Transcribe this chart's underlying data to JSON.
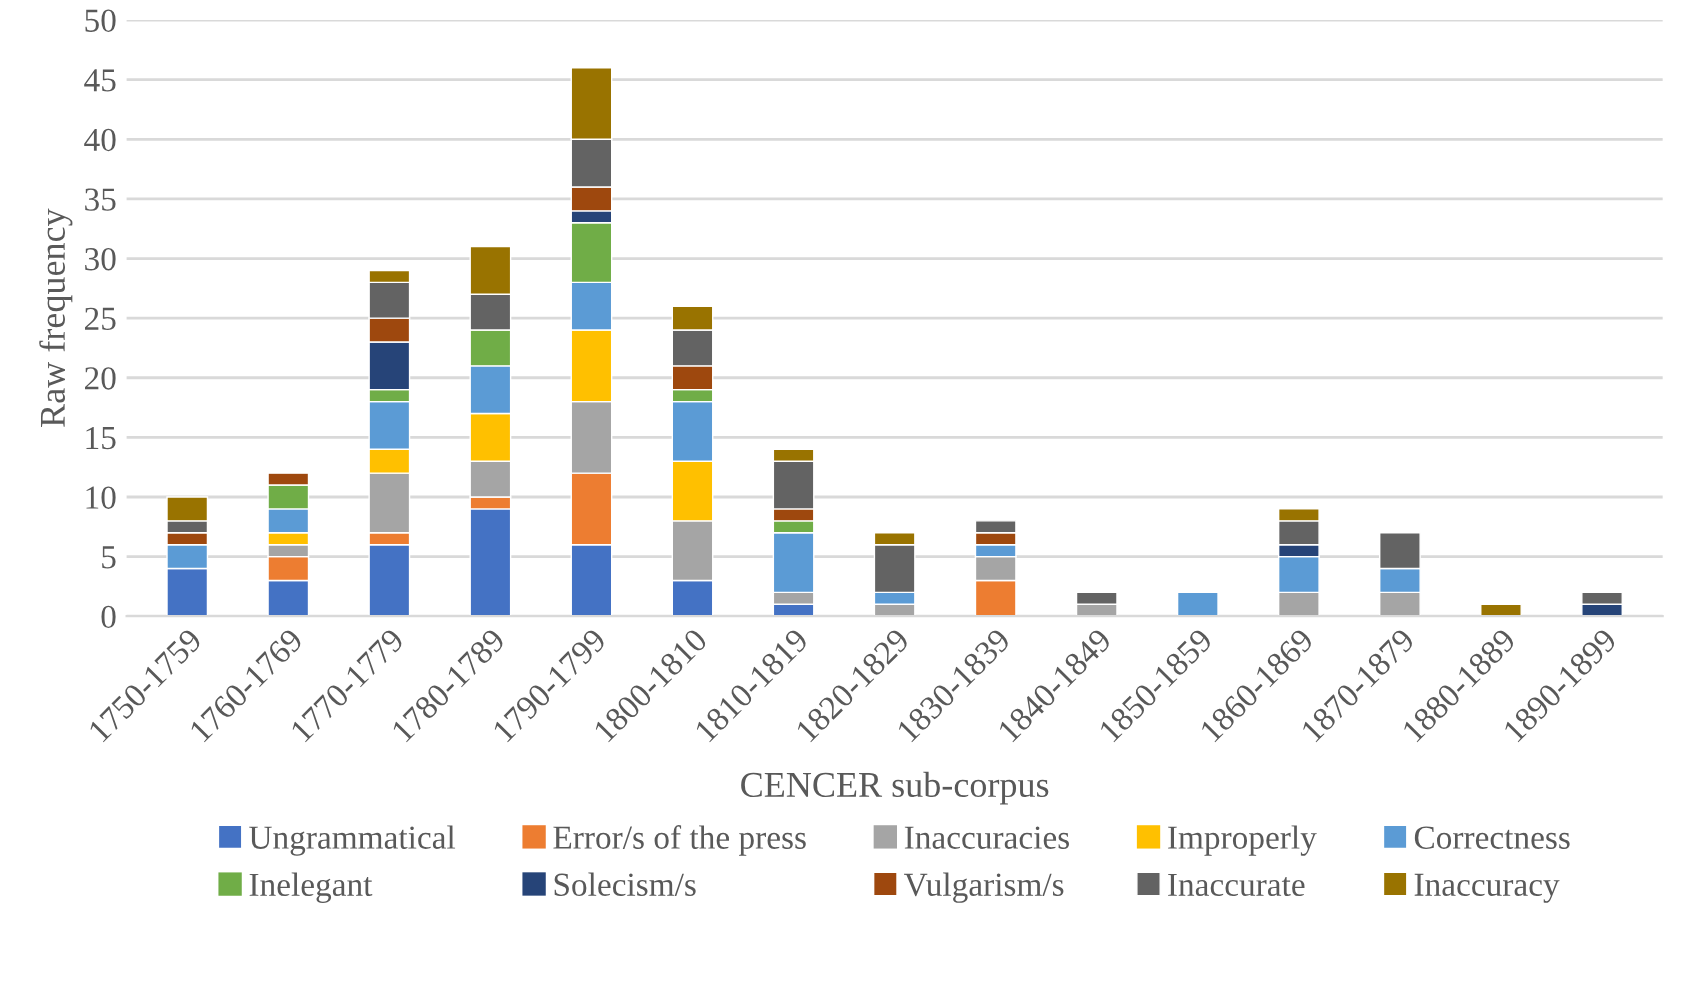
{
  "chart_data": {
    "type": "bar",
    "stacked": true,
    "xlabel": "CENCER sub-corpus",
    "ylabel": "Raw frequency",
    "categories": [
      "1750-1759",
      "1760-1769",
      "1770-1779",
      "1780-1789",
      "1790-1799",
      "1800-1810",
      "1810-1819",
      "1820-1829",
      "1830-1839",
      "1840-1849",
      "1850-1859",
      "1860-1869",
      "1870-1879",
      "1880-1889",
      "1890-1899"
    ],
    "series": [
      {
        "name": "Ungrammatical",
        "color": "#4472c4",
        "values": [
          4,
          3,
          6,
          9,
          6,
          3,
          1,
          0,
          0,
          0,
          0,
          0,
          0,
          0,
          0
        ]
      },
      {
        "name": "Error/s of the press",
        "color": "#ed7d31",
        "values": [
          0,
          2,
          1,
          1,
          6,
          0,
          0,
          0,
          3,
          0,
          0,
          0,
          0,
          0,
          0
        ]
      },
      {
        "name": "Inaccuracies",
        "color": "#a5a5a5",
        "values": [
          0,
          1,
          5,
          3,
          6,
          5,
          1,
          1,
          2,
          1,
          0,
          2,
          2,
          0,
          0
        ]
      },
      {
        "name": "Improperly",
        "color": "#ffc000",
        "values": [
          0,
          1,
          2,
          4,
          6,
          5,
          0,
          0,
          0,
          0,
          0,
          0,
          0,
          0,
          0
        ]
      },
      {
        "name": "Correctness",
        "color": "#5b9bd5",
        "values": [
          2,
          2,
          4,
          4,
          4,
          5,
          5,
          1,
          1,
          0,
          2,
          3,
          2,
          0,
          0
        ]
      },
      {
        "name": "Inelegant",
        "color": "#70ad47",
        "values": [
          0,
          2,
          1,
          3,
          5,
          1,
          1,
          0,
          0,
          0,
          0,
          0,
          0,
          0,
          0
        ]
      },
      {
        "name": "Solecism/s",
        "color": "#264478",
        "values": [
          0,
          0,
          4,
          0,
          1,
          0,
          0,
          0,
          0,
          0,
          0,
          1,
          0,
          0,
          1
        ]
      },
      {
        "name": "Vulgarism/s",
        "color": "#9e480e",
        "values": [
          1,
          1,
          2,
          0,
          2,
          2,
          1,
          0,
          1,
          0,
          0,
          0,
          0,
          0,
          0
        ]
      },
      {
        "name": "Inaccurate",
        "color": "#636363",
        "values": [
          1,
          0,
          3,
          3,
          4,
          3,
          4,
          4,
          1,
          1,
          0,
          2,
          3,
          0,
          1
        ]
      },
      {
        "name": "Inaccuracy",
        "color": "#997300",
        "values": [
          2,
          0,
          1,
          4,
          6,
          2,
          1,
          1,
          0,
          0,
          0,
          1,
          0,
          1,
          0
        ]
      }
    ],
    "ylim": [
      0,
      50
    ],
    "yticks": [
      0,
      5,
      10,
      15,
      20,
      25,
      30,
      35,
      40,
      45,
      50
    ],
    "grid": "y",
    "legend": "bottom"
  }
}
